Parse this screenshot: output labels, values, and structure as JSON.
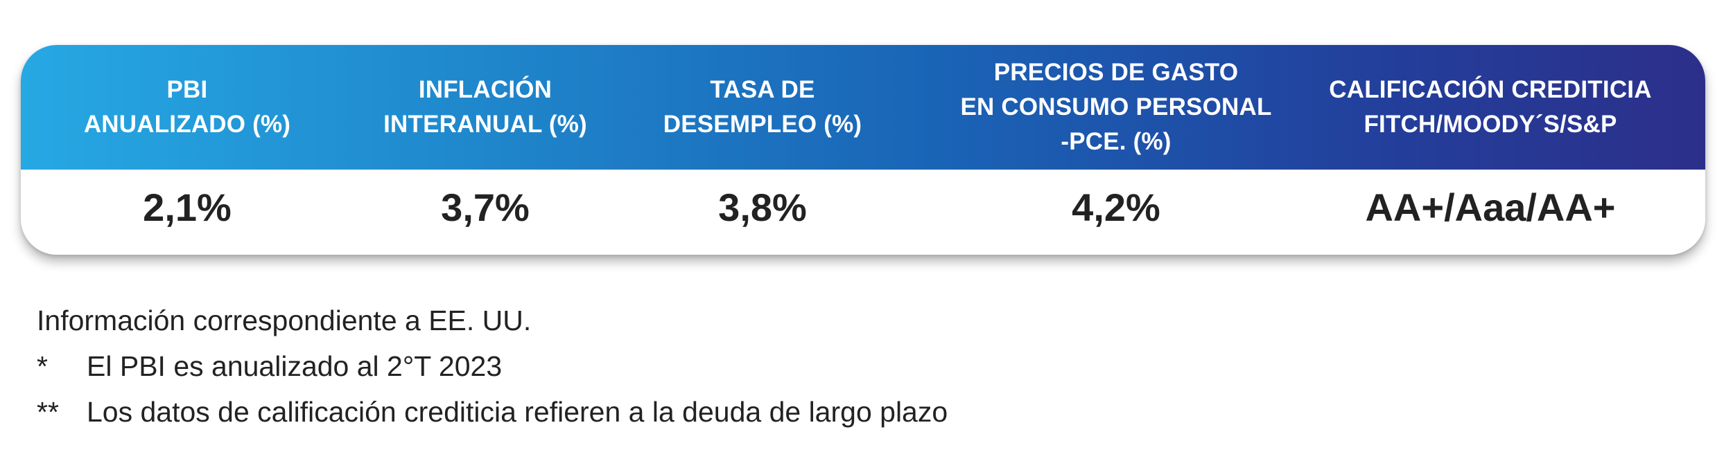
{
  "table": {
    "headers": [
      "PBI\nANUALIZADO (%)",
      "INFLACIÓN\nINTERANUAL (%)",
      "TASA DE\nDESEMPLEO (%)",
      "PRECIOS DE GASTO\nEN CONSUMO PERSONAL\n-PCE. (%)",
      "CALIFICACIÓN CREDITICIA\nFITCH/MOODY´S/S&P"
    ],
    "values": [
      "2,1%",
      "3,7%",
      "3,8%",
      "4,2%",
      "AA+/Aaa/AA+"
    ]
  },
  "notes": {
    "source": "Información correspondiente a EE. UU.",
    "note1_mark": "*",
    "note1_text": "El PBI es anualizado al 2°T 2023",
    "note2_mark": "**",
    "note2_text": "Los datos de calificación crediticia refieren a la deuda de largo plazo"
  },
  "colors": {
    "header_gradient_start": "#26a8e3",
    "header_gradient_end": "#2c2f8a",
    "value_text": "#222222"
  }
}
